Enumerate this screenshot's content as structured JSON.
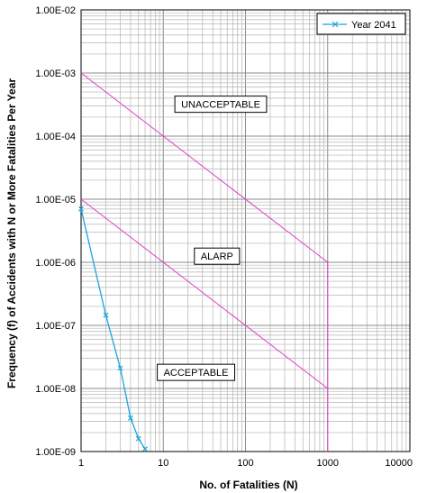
{
  "chart_data": {
    "type": "line",
    "x_scale": "log",
    "y_scale": "log",
    "xlabel": "No. of Fatalities (N)",
    "ylabel": "Frequency (f) of Accidents with N or More Fatalities Per Year",
    "xlim": [
      1,
      10000
    ],
    "ylim": [
      1e-09,
      0.01
    ],
    "x_ticks": [
      1,
      10,
      100,
      1000,
      10000
    ],
    "x_tick_labels": [
      "1",
      "10",
      "100",
      "1000",
      "10000"
    ],
    "y_ticks": [
      1e-09,
      1e-08,
      1e-07,
      1e-06,
      1e-05,
      0.0001,
      0.001,
      0.01
    ],
    "y_tick_labels": [
      "1.00E-09",
      "1.00E-08",
      "1.00E-07",
      "1.00E-06",
      "1.00E-05",
      "1.00E-04",
      "1.00E-03",
      "1.00E-02"
    ],
    "grid": true,
    "legend_position": "top-right",
    "series": [
      {
        "name": "Year 2041",
        "color": "#1aa5e0",
        "marker": "x",
        "x": [
          1,
          2,
          3,
          4,
          5,
          6
        ],
        "y": [
          7e-06,
          1.45e-07,
          2.1e-08,
          3.4e-09,
          1.6e-09,
          1.1e-09
        ]
      }
    ],
    "criteria_lines": {
      "color": "#e040c8",
      "upper": {
        "x": [
          1,
          1000,
          1000
        ],
        "y": [
          0.001,
          1e-06,
          1e-09
        ]
      },
      "lower": {
        "x": [
          1,
          1000
        ],
        "y": [
          1e-05,
          1e-08
        ]
      }
    },
    "regions": [
      {
        "key": "unacceptable",
        "label": "UNACCEPTABLE",
        "x": 50,
        "y": 0.00032
      },
      {
        "key": "alarp",
        "label": "ALARP",
        "x": 45,
        "y": 1.25e-06
      },
      {
        "key": "acceptable",
        "label": "ACCEPTABLE",
        "x": 25,
        "y": 1.8e-08
      }
    ]
  }
}
